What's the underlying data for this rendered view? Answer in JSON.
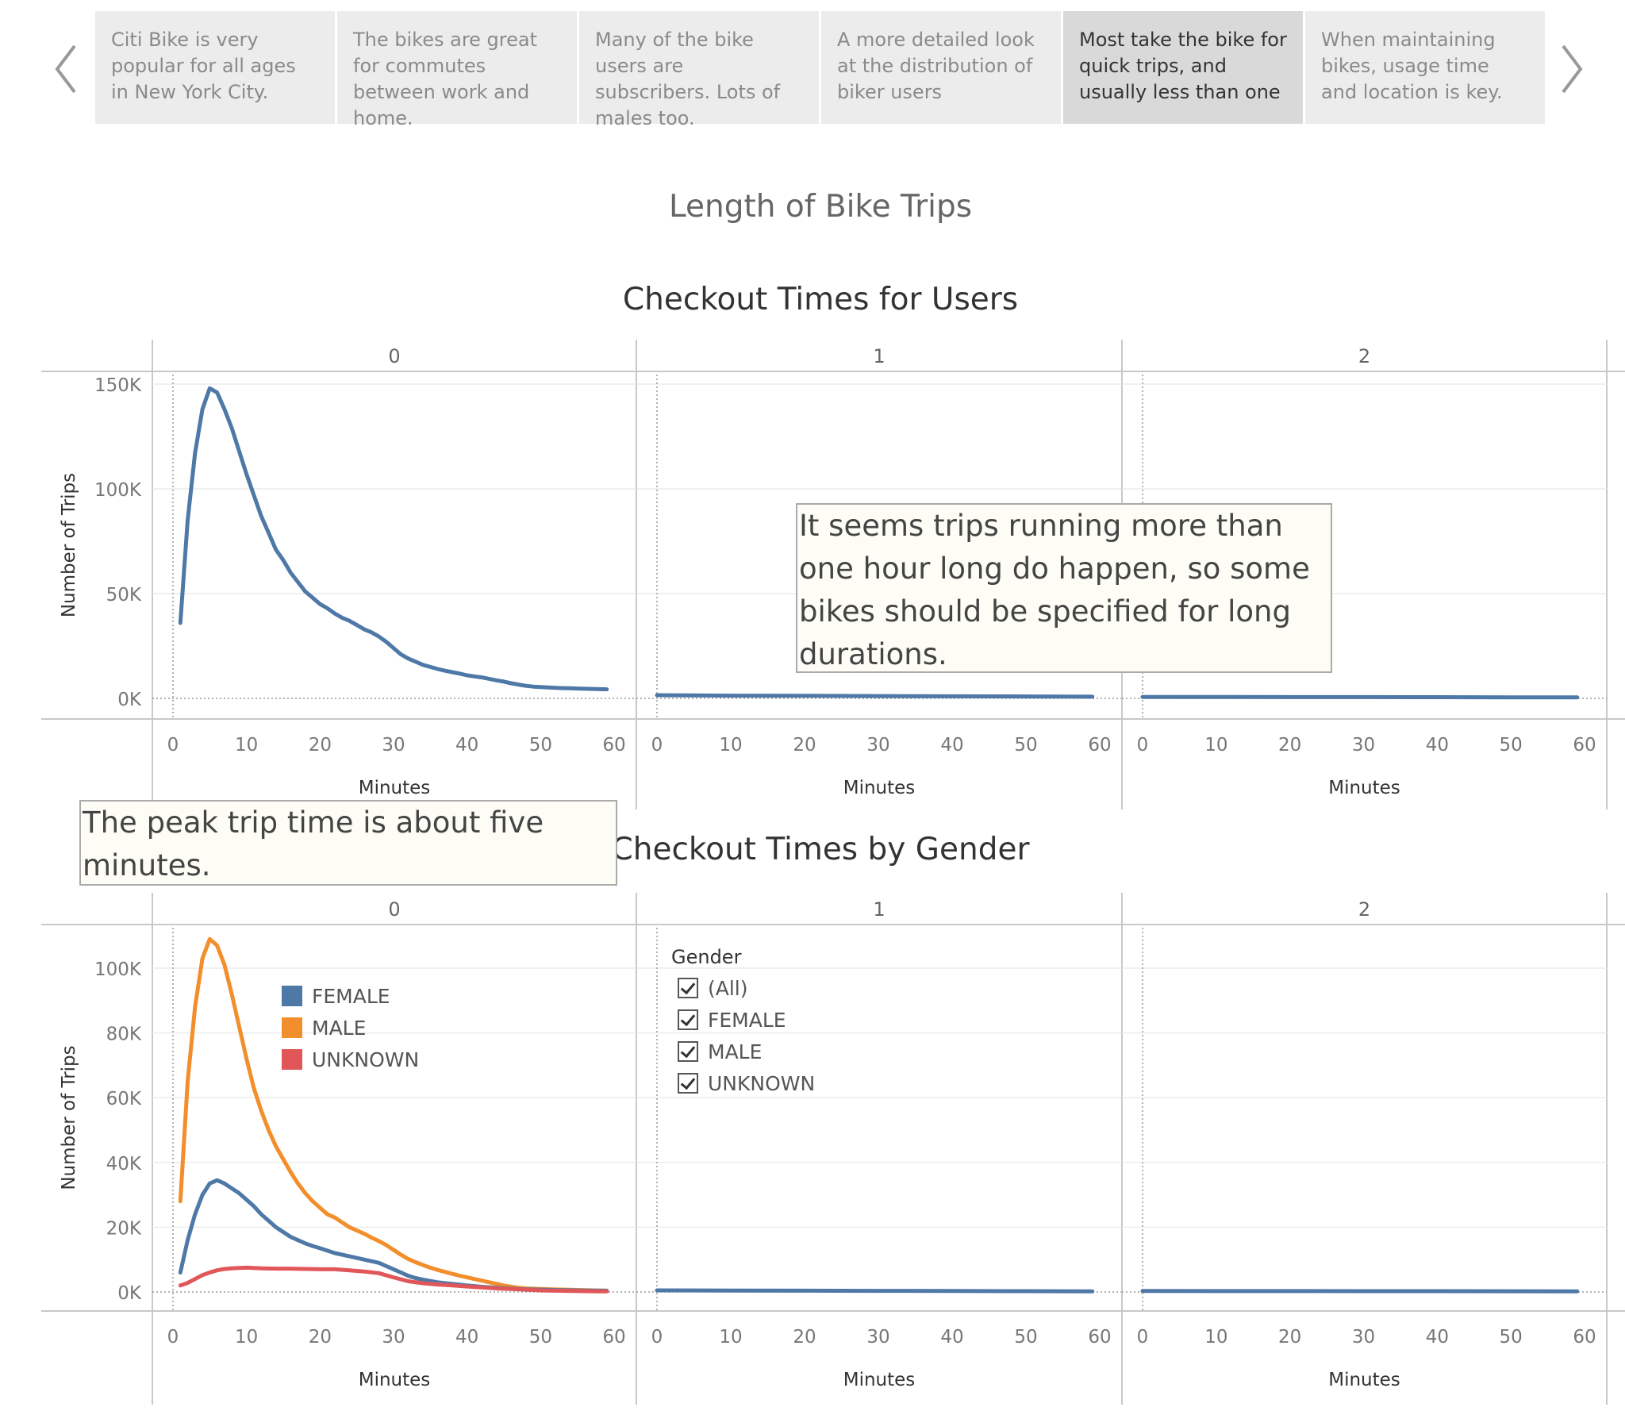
{
  "story": {
    "points": [
      {
        "text": "Citi Bike is very popular for all ages in New York City.",
        "active": false
      },
      {
        "text": "The bikes are great for commutes between work and home.",
        "active": false
      },
      {
        "text": "Many of the bike users are subscribers. Lots of males too.",
        "active": false
      },
      {
        "text": "A more detailed look at the distribution of biker users",
        "active": false
      },
      {
        "text": "Most take the bike for quick trips, and usually less than one",
        "active": true
      },
      {
        "text": "When maintaining bikes, usage time and location is key.",
        "active": false
      }
    ],
    "prev_icon": "chevron-left-icon",
    "next_icon": "chevron-right-icon"
  },
  "dashboard_title": "Length of Bike Trips",
  "annotations": {
    "long_trips": "It seems trips running more than one hour long do happen, so some bikes should be specified for long durations.",
    "peak": "The peak trip time is about five minutes."
  },
  "legend": {
    "items": [
      {
        "label": "FEMALE",
        "color": "#4e79a7"
      },
      {
        "label": "MALE",
        "color": "#f28e2b"
      },
      {
        "label": "UNKNOWN",
        "color": "#e15759"
      }
    ]
  },
  "filter": {
    "title": "Gender",
    "options": [
      "(All)",
      "FEMALE",
      "MALE",
      "UNKNOWN"
    ]
  },
  "chart_data": [
    {
      "type": "line",
      "title": "Checkout Times for Users",
      "panels": [
        "0",
        "1",
        "2"
      ],
      "xlabel": "Minutes",
      "ylabel": "Number of Trips",
      "xlim": [
        0,
        60
      ],
      "xticks": [
        0,
        10,
        20,
        30,
        40,
        50,
        60
      ],
      "ylim": [
        0,
        150000
      ],
      "yticks": [
        0,
        50000,
        100000,
        150000
      ],
      "yticklabels": [
        "0K",
        "50K",
        "100K",
        "150K"
      ],
      "series": [
        {
          "panel": "0",
          "color": "#4e79a7",
          "x": [
            1,
            2,
            3,
            4,
            5,
            6,
            7,
            8,
            9,
            10,
            11,
            12,
            13,
            14,
            15,
            16,
            17,
            18,
            19,
            20,
            21,
            22,
            23,
            24,
            25,
            26,
            27,
            28,
            29,
            30,
            31,
            32,
            33,
            34,
            35,
            36,
            37,
            38,
            39,
            40,
            41,
            42,
            43,
            44,
            45,
            46,
            47,
            48,
            49,
            50,
            51,
            52,
            53,
            54,
            55,
            56,
            57,
            58,
            59
          ],
          "y": [
            36000,
            85000,
            117000,
            138000,
            148000,
            146000,
            138000,
            129000,
            118000,
            107000,
            97000,
            87000,
            79000,
            71000,
            66000,
            60000,
            55500,
            51000,
            48000,
            45000,
            43000,
            40500,
            38500,
            37000,
            35000,
            33000,
            31500,
            29500,
            27000,
            24000,
            21000,
            19000,
            17500,
            16000,
            15000,
            14000,
            13200,
            12500,
            11800,
            11000,
            10500,
            10000,
            9300,
            8600,
            8000,
            7200,
            6600,
            6000,
            5600,
            5400,
            5200,
            5000,
            4900,
            4800,
            4700,
            4600,
            4500,
            4400,
            4300
          ]
        },
        {
          "panel": "1",
          "color": "#4e79a7",
          "x": [
            0,
            10,
            20,
            30,
            40,
            50,
            59
          ],
          "y": [
            1500,
            1300,
            1200,
            1100,
            1000,
            900,
            800
          ]
        },
        {
          "panel": "2",
          "color": "#4e79a7",
          "x": [
            0,
            10,
            20,
            30,
            40,
            50,
            59
          ],
          "y": [
            700,
            650,
            600,
            600,
            550,
            500,
            500
          ]
        }
      ]
    },
    {
      "type": "line",
      "title": "Checkout Times by Gender",
      "panels": [
        "0",
        "1",
        "2"
      ],
      "xlabel": "Minutes",
      "ylabel": "Number of Trips",
      "xlim": [
        0,
        60
      ],
      "xticks": [
        0,
        10,
        20,
        30,
        40,
        50,
        60
      ],
      "ylim": [
        0,
        110000
      ],
      "yticks": [
        0,
        20000,
        40000,
        60000,
        80000,
        100000
      ],
      "yticklabels": [
        "0K",
        "20K",
        "40K",
        "60K",
        "80K",
        "100K"
      ],
      "series": [
        {
          "name": "MALE",
          "panel": "0",
          "color": "#f28e2b",
          "x": [
            1,
            2,
            3,
            4,
            5,
            6,
            7,
            8,
            9,
            10,
            11,
            12,
            13,
            14,
            15,
            16,
            17,
            18,
            19,
            20,
            21,
            22,
            23,
            24,
            25,
            26,
            27,
            28,
            29,
            30,
            31,
            32,
            33,
            34,
            35,
            36,
            37,
            38,
            39,
            40,
            41,
            42,
            43,
            44,
            45,
            46,
            47,
            48,
            49,
            50,
            52,
            54,
            56,
            58,
            59
          ],
          "y": [
            28000,
            65000,
            88000,
            103000,
            109000,
            107000,
            101000,
            92000,
            82000,
            72000,
            63000,
            56000,
            50000,
            45000,
            41000,
            37000,
            33500,
            30500,
            28000,
            26000,
            24000,
            23000,
            21500,
            20000,
            19000,
            18000,
            16800,
            15700,
            14500,
            13000,
            11500,
            10200,
            9200,
            8300,
            7500,
            6800,
            6200,
            5600,
            5000,
            4500,
            4000,
            3500,
            3000,
            2500,
            2000,
            1600,
            1300,
            1100,
            1000,
            900,
            750,
            650,
            550,
            450,
            400
          ]
        },
        {
          "name": "FEMALE",
          "panel": "0",
          "color": "#4e79a7",
          "x": [
            1,
            2,
            3,
            4,
            5,
            6,
            7,
            8,
            9,
            10,
            11,
            12,
            13,
            14,
            15,
            16,
            17,
            18,
            19,
            20,
            22,
            24,
            26,
            28,
            29,
            30,
            31,
            32,
            33,
            34,
            36,
            38,
            40,
            42,
            44,
            46,
            48,
            50,
            52,
            54,
            56,
            58,
            59
          ],
          "y": [
            6000,
            16000,
            24000,
            30000,
            33500,
            34500,
            33500,
            32000,
            30500,
            28500,
            26500,
            24000,
            22000,
            20000,
            18500,
            17000,
            16000,
            15000,
            14200,
            13500,
            12000,
            11000,
            10000,
            9000,
            8000,
            7000,
            6000,
            5000,
            4300,
            3800,
            3000,
            2500,
            2000,
            1600,
            1300,
            1000,
            800,
            700,
            600,
            500,
            450,
            400,
            400
          ]
        },
        {
          "name": "UNKNOWN",
          "panel": "0",
          "color": "#e15759",
          "x": [
            1,
            2,
            3,
            4,
            5,
            6,
            7,
            8,
            9,
            10,
            11,
            12,
            14,
            16,
            18,
            20,
            22,
            24,
            26,
            28,
            30,
            32,
            34,
            36,
            38,
            40,
            42,
            44,
            46,
            48,
            50,
            52,
            54,
            56,
            58,
            59
          ],
          "y": [
            2000,
            2800,
            4000,
            5200,
            6000,
            6700,
            7100,
            7300,
            7400,
            7500,
            7400,
            7300,
            7200,
            7200,
            7100,
            7000,
            7000,
            6700,
            6300,
            5800,
            4500,
            3300,
            2700,
            2300,
            2000,
            1700,
            1400,
            1100,
            900,
            700,
            500,
            400,
            300,
            250,
            200,
            200
          ]
        },
        {
          "name": "FEMALE",
          "panel": "1",
          "color": "#4e79a7",
          "x": [
            0,
            10,
            20,
            30,
            40,
            50,
            59
          ],
          "y": [
            500,
            450,
            400,
            350,
            300,
            250,
            200
          ]
        },
        {
          "name": "FEMALE",
          "panel": "2",
          "color": "#4e79a7",
          "x": [
            0,
            10,
            20,
            30,
            40,
            50,
            59
          ],
          "y": [
            300,
            280,
            260,
            250,
            240,
            220,
            200
          ]
        }
      ]
    }
  ]
}
